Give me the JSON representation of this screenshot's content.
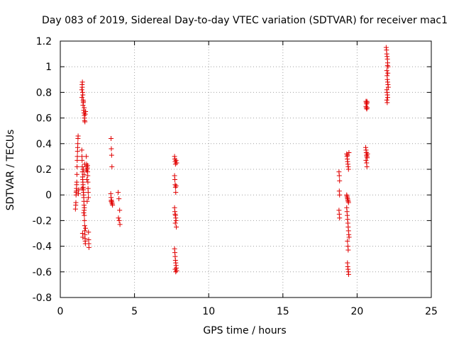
{
  "chart_data": {
    "type": "scatter",
    "title": "Day 083 of 2019, Sidereal Day-to-day VTEC variation (SDTVAR) for receiver mac1",
    "xlabel": "GPS time / hours",
    "ylabel": "SDTVAR / TECUs",
    "xlim": [
      0,
      25
    ],
    "ylim": [
      -0.8,
      1.2
    ],
    "xticks": [
      0,
      5,
      10,
      15,
      20,
      25
    ],
    "xtick_labels": [
      "0",
      "5",
      "10",
      "15",
      "20",
      "25"
    ],
    "yticks": [
      -0.8,
      -0.6,
      -0.4,
      -0.2,
      0,
      0.2,
      0.4,
      0.6,
      0.8,
      1,
      1.2
    ],
    "ytick_labels": [
      "-0.8",
      "-0.6",
      "-0.4",
      "-0.2",
      "0",
      "0.2",
      "0.4",
      "0.6",
      "0.8",
      "1",
      "1.2"
    ],
    "grid": true,
    "marker": "+",
    "series": [
      {
        "name": "SDTVAR",
        "color": "#e00000",
        "points": [
          [
            1.02,
            -0.11
          ],
          [
            1.04,
            -0.08
          ],
          [
            1.05,
            -0.06
          ],
          [
            1.06,
            0.0
          ],
          [
            1.07,
            0.02
          ],
          [
            1.08,
            0.03
          ],
          [
            1.09,
            0.05
          ],
          [
            1.1,
            0.08
          ],
          [
            1.11,
            0.1
          ],
          [
            1.12,
            0.16
          ],
          [
            1.13,
            0.22
          ],
          [
            1.14,
            0.27
          ],
          [
            1.15,
            0.3
          ],
          [
            1.16,
            0.34
          ],
          [
            1.17,
            0.37
          ],
          [
            1.18,
            0.4
          ],
          [
            1.19,
            0.44
          ],
          [
            1.2,
            0.46
          ],
          [
            1.22,
            0.01
          ],
          [
            1.24,
            0.04
          ],
          [
            1.45,
            0.82
          ],
          [
            1.47,
            0.86
          ],
          [
            1.48,
            0.84
          ],
          [
            1.5,
            0.8
          ],
          [
            1.52,
            0.78
          ],
          [
            1.54,
            0.74
          ],
          [
            1.55,
            0.72
          ],
          [
            1.56,
            0.73
          ],
          [
            1.58,
            0.66
          ],
          [
            1.6,
            0.64
          ],
          [
            1.62,
            0.62
          ],
          [
            1.63,
            0.6
          ],
          [
            1.64,
            0.58
          ],
          [
            1.66,
            0.57
          ],
          [
            1.68,
            0.63
          ],
          [
            1.7,
            0.65
          ],
          [
            1.46,
            0.76
          ],
          [
            1.49,
            0.88
          ],
          [
            1.53,
            0.7
          ],
          [
            1.61,
            0.68
          ],
          [
            1.45,
            0.35
          ],
          [
            1.46,
            0.3
          ],
          [
            1.47,
            0.27
          ],
          [
            1.48,
            0.22
          ],
          [
            1.49,
            0.18
          ],
          [
            1.5,
            0.14
          ],
          [
            1.51,
            0.12
          ],
          [
            1.52,
            0.1
          ],
          [
            1.53,
            0.08
          ],
          [
            1.54,
            0.06
          ],
          [
            1.55,
            0.04
          ],
          [
            1.56,
            0.02
          ],
          [
            1.57,
            0.0
          ],
          [
            1.58,
            -0.02
          ],
          [
            1.59,
            -0.05
          ],
          [
            1.6,
            -0.08
          ],
          [
            1.61,
            -0.12
          ],
          [
            1.62,
            -0.16
          ],
          [
            1.63,
            -0.2
          ],
          [
            1.64,
            -0.24
          ],
          [
            1.65,
            -0.28
          ],
          [
            1.66,
            -0.31
          ],
          [
            1.67,
            -0.34
          ],
          [
            1.68,
            -0.36
          ],
          [
            1.69,
            -0.38
          ],
          [
            1.5,
            -0.3
          ],
          [
            1.52,
            -0.33
          ],
          [
            1.55,
            0.2
          ],
          [
            1.58,
            -0.14
          ],
          [
            1.6,
            0.16
          ],
          [
            1.62,
            -0.1
          ],
          [
            1.65,
            0.24
          ],
          [
            1.48,
            0.05
          ],
          [
            1.7,
            -0.26
          ],
          [
            1.75,
            0.3
          ],
          [
            1.77,
            0.24
          ],
          [
            1.78,
            0.22
          ],
          [
            1.8,
            0.2
          ],
          [
            1.82,
            0.21
          ],
          [
            1.84,
            0.18
          ],
          [
            1.85,
            0.15
          ],
          [
            1.86,
            0.1
          ],
          [
            1.87,
            0.05
          ],
          [
            1.88,
            0.02
          ],
          [
            1.89,
            -0.02
          ],
          [
            1.9,
            -0.29
          ],
          [
            1.91,
            -0.35
          ],
          [
            1.92,
            -0.38
          ],
          [
            1.93,
            -0.41
          ],
          [
            1.76,
            0.19
          ],
          [
            1.83,
            0.23
          ],
          [
            1.79,
            0.12
          ],
          [
            1.81,
            -0.05
          ],
          [
            3.42,
            0.44
          ],
          [
            3.44,
            0.36
          ],
          [
            3.46,
            0.31
          ],
          [
            3.48,
            0.22
          ],
          [
            3.4,
            0.01
          ],
          [
            3.42,
            -0.02
          ],
          [
            3.44,
            -0.04
          ],
          [
            3.46,
            -0.05
          ],
          [
            3.48,
            -0.06
          ],
          [
            3.5,
            -0.07
          ],
          [
            3.52,
            -0.08
          ],
          [
            3.43,
            -0.05
          ],
          [
            3.47,
            -0.06
          ],
          [
            3.9,
            0.02
          ],
          [
            3.95,
            -0.03
          ],
          [
            4.0,
            -0.12
          ],
          [
            3.92,
            -0.18
          ],
          [
            3.97,
            -0.2
          ],
          [
            4.02,
            -0.23
          ],
          [
            7.7,
            0.3
          ],
          [
            7.72,
            0.28
          ],
          [
            7.74,
            0.26
          ],
          [
            7.76,
            0.24
          ],
          [
            7.8,
            0.27
          ],
          [
            7.84,
            0.25
          ],
          [
            7.7,
            0.15
          ],
          [
            7.72,
            0.12
          ],
          [
            7.74,
            0.08
          ],
          [
            7.76,
            0.06
          ],
          [
            7.78,
            0.02
          ],
          [
            7.8,
            0.07
          ],
          [
            7.7,
            -0.1
          ],
          [
            7.72,
            -0.13
          ],
          [
            7.74,
            -0.15
          ],
          [
            7.76,
            -0.16
          ],
          [
            7.78,
            -0.18
          ],
          [
            7.8,
            -0.2
          ],
          [
            7.82,
            -0.25
          ],
          [
            7.75,
            -0.22
          ],
          [
            7.7,
            -0.42
          ],
          [
            7.72,
            -0.45
          ],
          [
            7.74,
            -0.48
          ],
          [
            7.76,
            -0.51
          ],
          [
            7.78,
            -0.53
          ],
          [
            7.8,
            -0.55
          ],
          [
            7.82,
            -0.57
          ],
          [
            7.84,
            -0.59
          ],
          [
            7.74,
            -0.58
          ],
          [
            7.78,
            -0.6
          ],
          [
            18.78,
            0.18
          ],
          [
            18.8,
            0.15
          ],
          [
            18.82,
            0.11
          ],
          [
            18.8,
            0.03
          ],
          [
            18.82,
            0.0
          ],
          [
            18.78,
            -0.12
          ],
          [
            18.8,
            -0.15
          ],
          [
            18.82,
            -0.18
          ],
          [
            19.3,
            0.32
          ],
          [
            19.32,
            0.3
          ],
          [
            19.34,
            0.28
          ],
          [
            19.36,
            0.26
          ],
          [
            19.38,
            0.24
          ],
          [
            19.4,
            0.22
          ],
          [
            19.42,
            0.2
          ],
          [
            19.35,
            0.31
          ],
          [
            19.45,
            0.33
          ],
          [
            19.3,
            0.0
          ],
          [
            19.32,
            -0.01
          ],
          [
            19.34,
            -0.02
          ],
          [
            19.36,
            -0.03
          ],
          [
            19.38,
            -0.04
          ],
          [
            19.4,
            -0.05
          ],
          [
            19.42,
            -0.06
          ],
          [
            19.3,
            -0.1
          ],
          [
            19.32,
            -0.13
          ],
          [
            19.34,
            -0.16
          ],
          [
            19.36,
            -0.19
          ],
          [
            19.38,
            -0.22
          ],
          [
            19.4,
            -0.25
          ],
          [
            19.42,
            -0.28
          ],
          [
            19.44,
            -0.31
          ],
          [
            19.46,
            -0.33
          ],
          [
            19.35,
            -0.36
          ],
          [
            19.38,
            -0.4
          ],
          [
            19.4,
            -0.43
          ],
          [
            19.35,
            -0.53
          ],
          [
            19.37,
            -0.56
          ],
          [
            19.39,
            -0.58
          ],
          [
            19.41,
            -0.6
          ],
          [
            19.43,
            -0.62
          ],
          [
            20.6,
            0.73
          ],
          [
            20.62,
            0.72
          ],
          [
            20.64,
            0.71
          ],
          [
            20.66,
            0.73
          ],
          [
            20.68,
            0.72
          ],
          [
            20.6,
            0.69
          ],
          [
            20.62,
            0.68
          ],
          [
            20.65,
            0.67
          ],
          [
            20.68,
            0.68
          ],
          [
            20.58,
            0.37
          ],
          [
            20.6,
            0.35
          ],
          [
            20.62,
            0.33
          ],
          [
            20.64,
            0.31
          ],
          [
            20.66,
            0.3
          ],
          [
            20.68,
            0.29
          ],
          [
            20.6,
            0.27
          ],
          [
            20.64,
            0.25
          ],
          [
            20.66,
            0.22
          ],
          [
            20.7,
            0.32
          ],
          [
            21.96,
            1.15
          ],
          [
            21.98,
            1.13
          ],
          [
            22.0,
            1.1
          ],
          [
            22.02,
            1.08
          ],
          [
            22.04,
            1.06
          ],
          [
            22.06,
            1.03
          ],
          [
            22.08,
            1.0
          ],
          [
            22.0,
            0.97
          ],
          [
            22.02,
            0.93
          ],
          [
            22.04,
            0.9
          ],
          [
            22.06,
            0.88
          ],
          [
            22.08,
            0.86
          ],
          [
            22.1,
            0.84
          ],
          [
            22.0,
            0.82
          ],
          [
            22.02,
            0.8
          ],
          [
            22.04,
            0.78
          ],
          [
            22.06,
            0.76
          ],
          [
            22.0,
            0.74
          ],
          [
            22.03,
            0.72
          ],
          [
            22.05,
            1.01
          ],
          [
            22.07,
            0.95
          ]
        ]
      }
    ]
  }
}
